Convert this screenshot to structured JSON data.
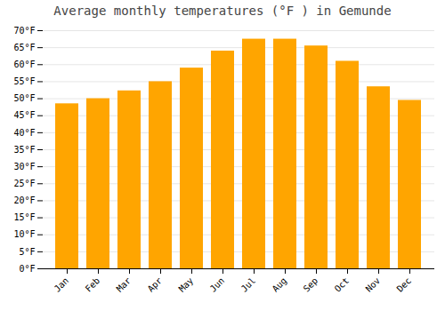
{
  "chart_data": {
    "type": "bar",
    "title": "Average monthly temperatures (°F ) in Gemunde",
    "categories": [
      "Jan",
      "Feb",
      "Mar",
      "Apr",
      "May",
      "Jun",
      "Jul",
      "Aug",
      "Sep",
      "Oct",
      "Nov",
      "Dec"
    ],
    "values": [
      48.5,
      50.0,
      52.3,
      55.0,
      59.0,
      64.0,
      67.5,
      67.5,
      65.5,
      61.0,
      53.5,
      49.5
    ],
    "color": "#FFA500",
    "ylim": [
      0,
      70
    ],
    "yticks": [
      {
        "value": 0,
        "label": "0°F"
      },
      {
        "value": 5,
        "label": "5°F"
      },
      {
        "value": 10,
        "label": "10°F"
      },
      {
        "value": 15,
        "label": "15°F"
      },
      {
        "value": 20,
        "label": "20°F"
      },
      {
        "value": 25,
        "label": "25°F"
      },
      {
        "value": 30,
        "label": "30°F"
      },
      {
        "value": 35,
        "label": "35°F"
      },
      {
        "value": 40,
        "label": "40°F"
      },
      {
        "value": 45,
        "label": "45°F"
      },
      {
        "value": 50,
        "label": "50°F"
      },
      {
        "value": 55,
        "label": "55°F"
      },
      {
        "value": 60,
        "label": "60°F"
      },
      {
        "value": 65,
        "label": "65°F"
      },
      {
        "value": 70,
        "label": "70°F"
      }
    ],
    "grid": true
  }
}
